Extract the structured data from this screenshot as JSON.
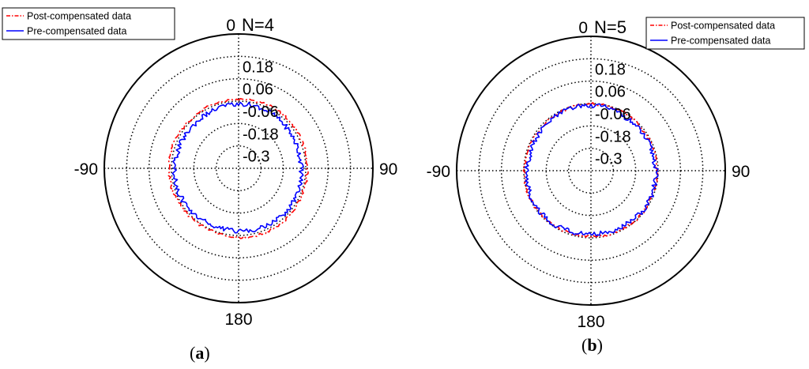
{
  "chart_data": [
    {
      "type": "polar-line",
      "panel_label": "(a)",
      "annotation": "N=4",
      "angle_tick_labels": [
        "0",
        "90",
        "180",
        "-90"
      ],
      "radial_tick_labels": [
        "0.18",
        "0.06",
        "-0.06",
        "-0.18",
        "-0.3"
      ],
      "radial_range": [
        -0.42,
        0.3
      ],
      "grid": true,
      "legend_position": "top-left",
      "series": [
        {
          "name": "Post-compensated data",
          "color": "#ff0000",
          "style": "dash-dot",
          "mean_value": -0.05,
          "variation": 0.009
        },
        {
          "name": "Pre-compensated data",
          "color": "#0000ff",
          "style": "solid",
          "mean_value": -0.08,
          "variation": 0.016
        }
      ]
    },
    {
      "type": "polar-line",
      "panel_label": "(b)",
      "annotation": "N=5",
      "angle_tick_labels": [
        "0",
        "90",
        "180",
        "-90"
      ],
      "radial_tick_labels": [
        "0.18",
        "0.06",
        "-0.06",
        "-0.18",
        "-0.3"
      ],
      "radial_range": [
        -0.42,
        0.3
      ],
      "grid": true,
      "legend_position": "top-right",
      "series": [
        {
          "name": "Post-compensated data",
          "color": "#ff0000",
          "style": "dash-dot",
          "mean_value": -0.065,
          "variation": 0.009
        },
        {
          "name": "Pre-compensated data",
          "color": "#0000ff",
          "style": "solid",
          "mean_value": -0.075,
          "variation": 0.016
        }
      ]
    }
  ]
}
